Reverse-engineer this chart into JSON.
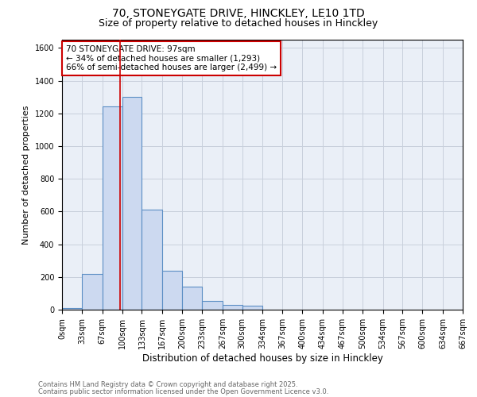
{
  "title1": "70, STONEYGATE DRIVE, HINCKLEY, LE10 1TD",
  "title2": "Size of property relative to detached houses in Hinckley",
  "xlabel": "Distribution of detached houses by size in Hinckley",
  "ylabel": "Number of detached properties",
  "bin_edges": [
    0,
    33,
    67,
    100,
    133,
    167,
    200,
    233,
    267,
    300,
    334,
    367,
    400,
    434,
    467,
    500,
    534,
    567,
    600,
    634,
    667
  ],
  "bin_heights": [
    10,
    220,
    1240,
    1300,
    610,
    240,
    140,
    55,
    30,
    25,
    0,
    0,
    0,
    0,
    0,
    0,
    0,
    0,
    0,
    0
  ],
  "bar_facecolor": "#ccd9f0",
  "bar_edgecolor": "#5b8ec4",
  "property_size": 97,
  "vline_color": "#cc0000",
  "annotation_title": "70 STONEYGATE DRIVE: 97sqm",
  "annotation_line2": "← 34% of detached houses are smaller (1,293)",
  "annotation_line3": "66% of semi-detached houses are larger (2,499) →",
  "annotation_box_color": "#cc0000",
  "annotation_bg": "#ffffff",
  "ylim": [
    0,
    1650
  ],
  "yticks": [
    0,
    200,
    400,
    600,
    800,
    1000,
    1200,
    1400,
    1600
  ],
  "grid_color": "#c8d0dc",
  "bg_color": "#eaeff7",
  "footer_line1": "Contains HM Land Registry data © Crown copyright and database right 2025.",
  "footer_line2": "Contains public sector information licensed under the Open Government Licence v3.0.",
  "title1_fontsize": 10,
  "title2_fontsize": 9,
  "xlabel_fontsize": 8.5,
  "ylabel_fontsize": 8,
  "tick_label_fontsize": 7,
  "annotation_fontsize": 7.5,
  "footer_fontsize": 6
}
